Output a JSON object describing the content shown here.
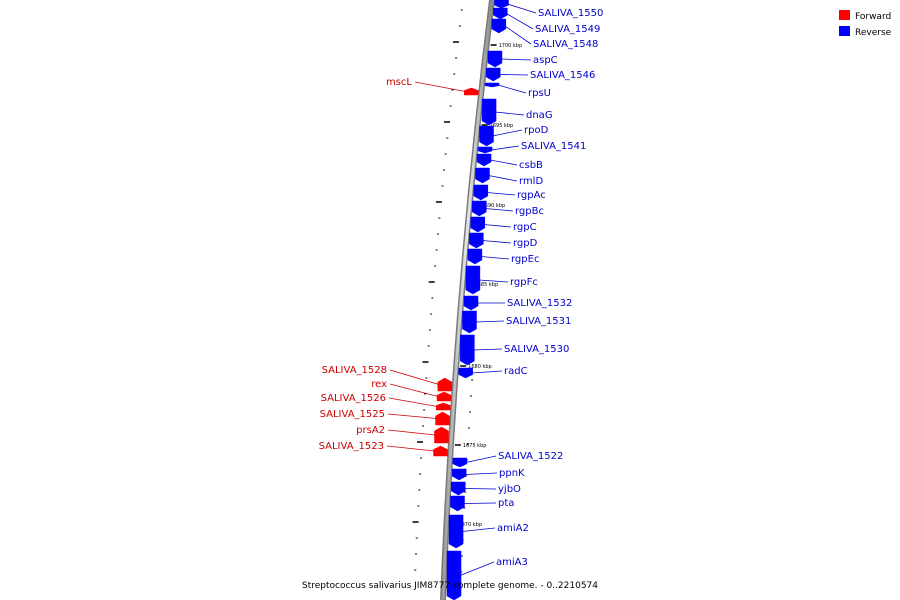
{
  "legend": {
    "forward": {
      "label": "Forward",
      "color": "#ff0000"
    },
    "reverse": {
      "label": "Reverse",
      "color": "#0000ff"
    }
  },
  "caption": "Streptococcus salivarius JIM8777 complete genome. - 0..2210574",
  "tick_labels": [
    "1700 kbp",
    "1695 kbp",
    "1690 kbp",
    "1685 kbp",
    "1680 kbp",
    "1675 kbp",
    "1670 kbp"
  ],
  "genes": [
    {
      "name": "SALIVA_1550",
      "strand": "reverse"
    },
    {
      "name": "SALIVA_1549",
      "strand": "reverse"
    },
    {
      "name": "SALIVA_1548",
      "strand": "reverse"
    },
    {
      "name": "aspC",
      "strand": "reverse"
    },
    {
      "name": "SALIVA_1546",
      "strand": "reverse"
    },
    {
      "name": "rpsU",
      "strand": "reverse"
    },
    {
      "name": "mscL",
      "strand": "forward"
    },
    {
      "name": "dnaG",
      "strand": "reverse"
    },
    {
      "name": "rpoD",
      "strand": "reverse"
    },
    {
      "name": "SALIVA_1541",
      "strand": "reverse"
    },
    {
      "name": "csbB",
      "strand": "reverse"
    },
    {
      "name": "rmlD",
      "strand": "reverse"
    },
    {
      "name": "rgpAc",
      "strand": "reverse"
    },
    {
      "name": "rgpBc",
      "strand": "reverse"
    },
    {
      "name": "rgpC",
      "strand": "reverse"
    },
    {
      "name": "rgpD",
      "strand": "reverse"
    },
    {
      "name": "rgpEc",
      "strand": "reverse"
    },
    {
      "name": "rgpFc",
      "strand": "reverse"
    },
    {
      "name": "SALIVA_1532",
      "strand": "reverse"
    },
    {
      "name": "SALIVA_1531",
      "strand": "reverse"
    },
    {
      "name": "SALIVA_1530",
      "strand": "reverse"
    },
    {
      "name": "radC",
      "strand": "reverse"
    },
    {
      "name": "SALIVA_1528",
      "strand": "forward"
    },
    {
      "name": "rex",
      "strand": "forward"
    },
    {
      "name": "SALIVA_1526",
      "strand": "forward"
    },
    {
      "name": "SALIVA_1525",
      "strand": "forward"
    },
    {
      "name": "prsA2",
      "strand": "forward"
    },
    {
      "name": "SALIVA_1523",
      "strand": "forward"
    },
    {
      "name": "SALIVA_1522",
      "strand": "reverse"
    },
    {
      "name": "ppnK",
      "strand": "reverse"
    },
    {
      "name": "yjbO",
      "strand": "reverse"
    },
    {
      "name": "pta",
      "strand": "reverse"
    },
    {
      "name": "amiA2",
      "strand": "reverse"
    },
    {
      "name": "amiA3",
      "strand": "reverse"
    }
  ]
}
